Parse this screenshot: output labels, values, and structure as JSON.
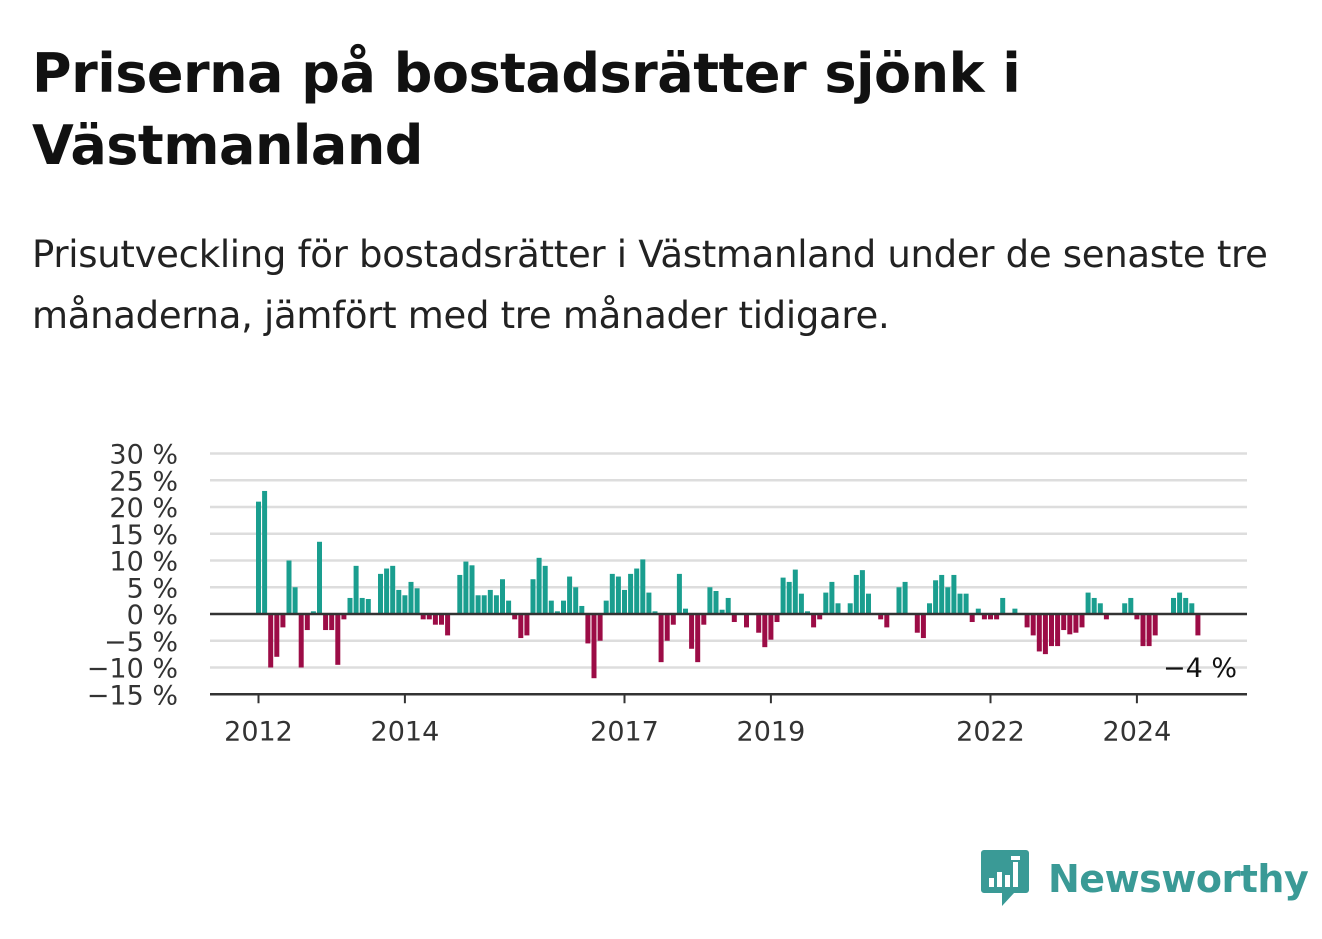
{
  "title": "Priserna på bostadsrätter sjönk i Västmanland",
  "subtitle": "Prisutveckling för bostadsrätter i Västmanland under de senaste tre månaderna, jämfört med tre månader tidigare.",
  "brand": {
    "name": "Newsworthy",
    "icon": "newsworthy-logo-icon",
    "color": "#3a9a96"
  },
  "colors": {
    "positive": "#1a9e8f",
    "negative": "#9c0c46",
    "grid": "#dddddd",
    "zero_line": "#333333"
  },
  "chart_data": {
    "type": "bar",
    "ylim": [
      -15,
      30
    ],
    "y_ticks": [
      30,
      25,
      20,
      15,
      10,
      5,
      0,
      -5,
      -10,
      -15
    ],
    "y_tick_labels": [
      "30 %",
      "25 %",
      "20 %",
      "15 %",
      "10 %",
      "5 %",
      "0 %",
      "−5 %",
      "−10 %",
      "−15 %"
    ],
    "x_tick_labels": [
      {
        "year": 2012,
        "label": "2012"
      },
      {
        "year": 2014,
        "label": "2014"
      },
      {
        "year": 2017,
        "label": "2017"
      },
      {
        "year": 2019,
        "label": "2019"
      },
      {
        "year": 2022,
        "label": "2022"
      },
      {
        "year": 2024,
        "label": "2024"
      }
    ],
    "start": "2012-01",
    "grid": true,
    "last_value_label": "−4 %",
    "values": [
      21,
      23,
      -10,
      -8,
      -2.5,
      10,
      5,
      -10,
      -3,
      0.5,
      13.5,
      -3,
      -3,
      -9.5,
      -1,
      3,
      9,
      3,
      2.8,
      0,
      7.5,
      8.5,
      9,
      4.5,
      3.5,
      6,
      4.8,
      -1,
      -1,
      -2,
      -2,
      -4,
      0,
      7.3,
      9.8,
      9.1,
      3.5,
      3.5,
      4.5,
      3.5,
      6.5,
      2.5,
      -1,
      -4.5,
      -4,
      6.5,
      10.5,
      9,
      2.5,
      0.5,
      2.5,
      7,
      5,
      1.5,
      -5.5,
      -12,
      -5,
      2.5,
      7.5,
      7,
      4.5,
      7.5,
      8.5,
      10.2,
      4,
      0.5,
      -9,
      -5,
      -2,
      7.5,
      1,
      -6.5,
      -9,
      -2,
      5,
      4.3,
      0.8,
      3,
      -1.5,
      0,
      -2.5,
      0,
      -3.5,
      -6.2,
      -4.8,
      -1.5,
      6.8,
      6,
      8.3,
      3.8,
      0.5,
      -2.5,
      -1,
      4,
      6,
      2,
      0,
      2,
      7.3,
      8.2,
      3.8,
      0,
      -1,
      -2.5,
      0,
      5,
      6,
      0,
      -3.5,
      -4.5,
      2,
      6.3,
      7.3,
      5,
      7.3,
      3.8,
      3.8,
      -1.5,
      1,
      -1,
      -1,
      -1,
      3,
      0,
      1,
      0,
      -2.5,
      -4,
      -7,
      -7.5,
      -6,
      -6,
      -3,
      -3.8,
      -3.5,
      -2.5,
      4,
      3,
      2,
      -1,
      0,
      0,
      2,
      3,
      -1,
      -6,
      -6,
      -4,
      0,
      0,
      3,
      4,
      3,
      2,
      -4
    ]
  }
}
